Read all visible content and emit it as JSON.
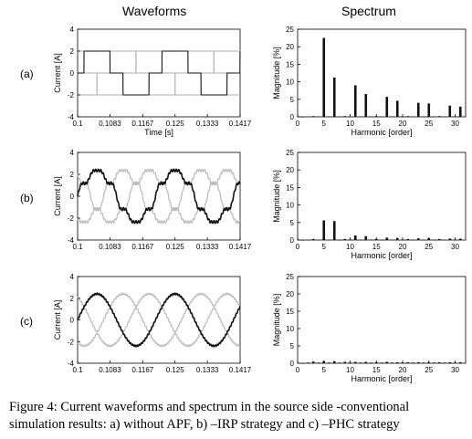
{
  "header": {
    "left": "Waveforms",
    "right": "Spectrum"
  },
  "caption": {
    "line1": "Figure 4:  Current waveforms and spectrum in the source side -conventional",
    "line2": "simulation results: a) without APF, b) –IRP strategy and c) –PHC strategy"
  },
  "colors": {
    "main_trace": "#111111",
    "other_phases": "#bdbdbd",
    "bars": "#111111"
  },
  "chart_data": [
    {
      "type": "line",
      "panel_label": "(a)",
      "xlabel": "Time [s]",
      "ylabel": "Current [A]",
      "xlim": [
        0.1,
        0.1417
      ],
      "ylim": [
        -4,
        4
      ],
      "xticks": [
        "0.1",
        "0.1083",
        "0.1167",
        "0.125",
        "0.1333",
        "0.1417"
      ],
      "yticks": [
        "4",
        "2",
        "0",
        "-2",
        "-4"
      ],
      "waveform": "six-step",
      "amplitude_A": 2.0,
      "frequency_Hz": 50,
      "phases": 3
    },
    {
      "type": "bar",
      "xlabel": "Harmonic [order]",
      "ylabel": "Magnitude [%]",
      "xlim": [
        0,
        32
      ],
      "ylim": [
        0,
        25
      ],
      "xticks": [
        "0",
        "5",
        "10",
        "15",
        "20",
        "25",
        "30"
      ],
      "yticks": [
        "25",
        "20",
        "15",
        "10",
        "5",
        "0"
      ],
      "x": [
        1,
        2,
        3,
        4,
        5,
        6,
        7,
        8,
        9,
        10,
        11,
        12,
        13,
        14,
        15,
        16,
        17,
        18,
        19,
        20,
        21,
        22,
        23,
        24,
        25,
        26,
        27,
        28,
        29,
        30,
        31
      ],
      "values": [
        0,
        0.1,
        0.2,
        0.1,
        22.5,
        0.1,
        11.2,
        0.1,
        0.2,
        0.1,
        9.0,
        0.1,
        6.5,
        0.1,
        0.2,
        0.1,
        5.7,
        0.1,
        4.6,
        0.1,
        0.2,
        0.1,
        4.0,
        0.1,
        3.8,
        0.1,
        0.2,
        0.1,
        3.2,
        0.1,
        2.9
      ]
    },
    {
      "type": "line",
      "panel_label": "(b)",
      "xlabel": "",
      "ylabel": "Current [A]",
      "xlim": [
        0.1,
        0.1417
      ],
      "ylim": [
        -4,
        4
      ],
      "xticks": [
        "0.1",
        "0.1083",
        "0.1167",
        "0.125",
        "0.1333",
        "0.1417"
      ],
      "yticks": [
        "4",
        "2",
        "0",
        "-2",
        "-4"
      ],
      "waveform": "distorted-sine",
      "amplitude_A": 2.3,
      "frequency_Hz": 50,
      "phases": 3
    },
    {
      "type": "bar",
      "xlabel": "Harmonic [order]",
      "ylabel": "Magnitude [%]",
      "xlim": [
        0,
        32
      ],
      "ylim": [
        0,
        25
      ],
      "xticks": [
        "0",
        "5",
        "10",
        "15",
        "20",
        "25",
        "30"
      ],
      "yticks": [
        "25",
        "20",
        "15",
        "10",
        "5",
        "0"
      ],
      "x": [
        1,
        2,
        3,
        4,
        5,
        6,
        7,
        8,
        9,
        10,
        11,
        12,
        13,
        14,
        15,
        16,
        17,
        18,
        19,
        20,
        21,
        22,
        23,
        24,
        25,
        26,
        27,
        28,
        29,
        30,
        31
      ],
      "values": [
        0,
        0.1,
        0.3,
        0.1,
        5.6,
        0.1,
        5.4,
        0.1,
        0.3,
        0.1,
        1.3,
        0.1,
        1.1,
        0.1,
        0.3,
        0.1,
        0.7,
        0.1,
        0.6,
        0.1,
        0.3,
        0.1,
        0.5,
        0.1,
        0.5,
        0.1,
        0.3,
        0.1,
        0.4,
        0.1,
        0.4
      ]
    },
    {
      "type": "line",
      "panel_label": "(c)",
      "xlabel": "",
      "ylabel": "Current [A]",
      "xlim": [
        0.1,
        0.1417
      ],
      "ylim": [
        -4,
        4
      ],
      "xticks": [
        "0.1",
        "0.1083",
        "0.1167",
        "0.125",
        "0.1333",
        "0.1417"
      ],
      "yticks": [
        "4",
        "2",
        "0",
        "-2",
        "-4"
      ],
      "waveform": "sine",
      "amplitude_A": 2.4,
      "frequency_Hz": 50,
      "phases": 3
    },
    {
      "type": "bar",
      "xlabel": "Harmonic [order]",
      "ylabel": "Magnitude [%]",
      "xlim": [
        0,
        32
      ],
      "ylim": [
        0,
        25
      ],
      "xticks": [
        "0",
        "5",
        "10",
        "15",
        "20",
        "25",
        "30"
      ],
      "yticks": [
        "25",
        "20",
        "15",
        "10",
        "5",
        "0"
      ],
      "x": [
        1,
        2,
        3,
        4,
        5,
        6,
        7,
        8,
        9,
        10,
        11,
        12,
        13,
        14,
        15,
        16,
        17,
        18,
        19,
        20,
        21,
        22,
        23,
        24,
        25,
        26,
        27,
        28,
        29,
        30,
        31
      ],
      "values": [
        0,
        0.2,
        0.5,
        0.2,
        0.6,
        0.2,
        0.6,
        0.2,
        0.4,
        0.2,
        0.4,
        0.2,
        0.4,
        0.2,
        0.3,
        0.2,
        0.4,
        0.2,
        0.3,
        0.2,
        0.3,
        0.2,
        0.3,
        0.2,
        0.3,
        0.2,
        0.3,
        0.2,
        0.3,
        0.2,
        0.3
      ]
    }
  ]
}
